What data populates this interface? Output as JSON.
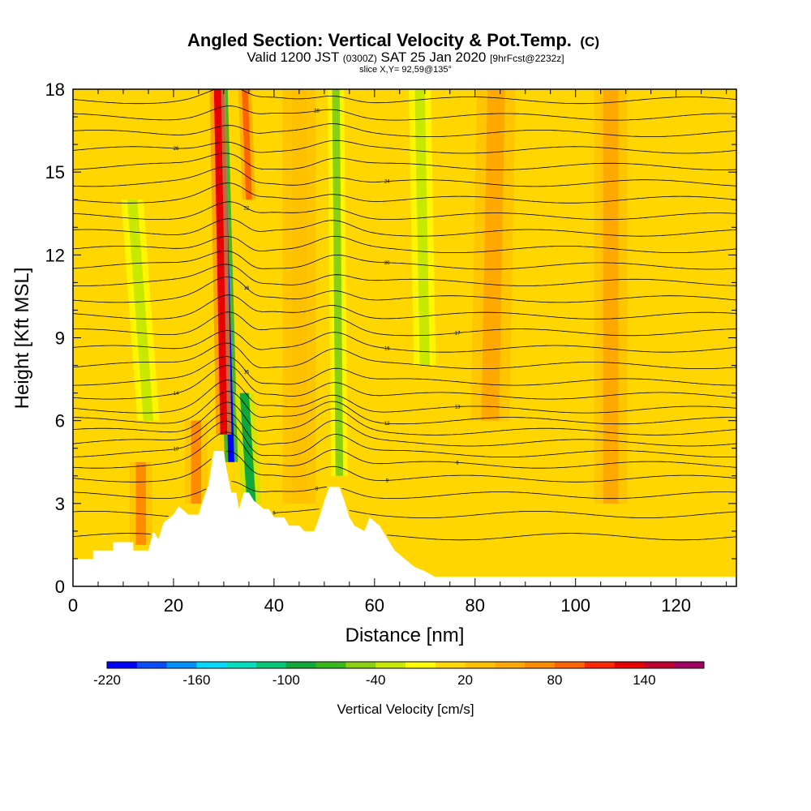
{
  "chart_data": {
    "type": "heatmap",
    "title": "Angled Section: Vertical Velocity & Pot.Temp.",
    "title_unit": "(C)",
    "subtitle": {
      "part1": "Valid 1200 JST ",
      "part2": "(0300Z)",
      "part3": " SAT 25 Jan 2020 ",
      "part4": "[9hrFcst@2232z]"
    },
    "slice_label": "slice X,Y= 92,59@135°",
    "xlabel": "Distance [nm]",
    "ylabel": "Height [Kft MSL]",
    "xlim": [
      0,
      132
    ],
    "ylim": [
      0,
      18
    ],
    "x_ticks": [
      "0",
      "20",
      "40",
      "60",
      "80",
      "100",
      "120"
    ],
    "y_ticks": [
      "0",
      "3",
      "6",
      "9",
      "12",
      "15",
      "18"
    ],
    "x_tick_values": [
      0,
      20,
      40,
      60,
      80,
      100,
      120
    ],
    "y_tick_values": [
      0,
      3,
      6,
      9,
      12,
      15,
      18
    ],
    "colorbar": {
      "title": "Vertical Velocity [cm/s]",
      "labels": [
        "-220",
        "-160",
        "-100",
        "-40",
        "20",
        "80",
        "140"
      ],
      "label_values": [
        -220,
        -160,
        -100,
        -40,
        20,
        80,
        140
      ],
      "min": -220,
      "max": 180,
      "step": 20,
      "colors": [
        "#0000ff",
        "#0a4dff",
        "#0090ff",
        "#00d8ff",
        "#00e0c0",
        "#00c878",
        "#10a838",
        "#38b818",
        "#88d010",
        "#c8e800",
        "#ffff00",
        "#ffd800",
        "#ffc000",
        "#ffa800",
        "#ff8c00",
        "#ff6400",
        "#ff2800",
        "#e80000",
        "#c00030",
        "#a00060"
      ]
    },
    "terrain_profile": [
      [
        0,
        1.0
      ],
      [
        4,
        1.0
      ],
      [
        4,
        1.3
      ],
      [
        8,
        1.3
      ],
      [
        8,
        1.6
      ],
      [
        12,
        1.6
      ],
      [
        12,
        1.3
      ],
      [
        15,
        1.3
      ],
      [
        16,
        2.0
      ],
      [
        17,
        1.7
      ],
      [
        18,
        2.3
      ],
      [
        20,
        2.6
      ],
      [
        21,
        2.9
      ],
      [
        23,
        2.6
      ],
      [
        25,
        2.6
      ],
      [
        26,
        3.2
      ],
      [
        27,
        3.7
      ],
      [
        28,
        4.9
      ],
      [
        30,
        4.9
      ],
      [
        30.5,
        4.3
      ],
      [
        31.5,
        3.4
      ],
      [
        32.5,
        3.4
      ],
      [
        33,
        2.8
      ],
      [
        34,
        3.4
      ],
      [
        35,
        3.4
      ],
      [
        36,
        3.1
      ],
      [
        38,
        2.8
      ],
      [
        39,
        2.8
      ],
      [
        40,
        2.5
      ],
      [
        42,
        2.5
      ],
      [
        43,
        2.2
      ],
      [
        45,
        2.2
      ],
      [
        46,
        2.0
      ],
      [
        48,
        2.0
      ],
      [
        49,
        2.5
      ],
      [
        50,
        3.1
      ],
      [
        51,
        3.6
      ],
      [
        53,
        3.6
      ],
      [
        54,
        3.1
      ],
      [
        55,
        2.5
      ],
      [
        56,
        2.2
      ],
      [
        58,
        2.0
      ],
      [
        59,
        2.5
      ],
      [
        61,
        2.2
      ],
      [
        62,
        1.9
      ],
      [
        63,
        1.6
      ],
      [
        64,
        1.3
      ],
      [
        66,
        1.0
      ],
      [
        68,
        0.7
      ],
      [
        70,
        0.55
      ],
      [
        72,
        0.35
      ],
      [
        132,
        0.35
      ]
    ],
    "vertical_velocity_features": [
      {
        "x": 31.5,
        "z_bottom": 4.5,
        "z_top": 18,
        "slope_nm_per_kft": -0.15,
        "width_nm": 1.2,
        "value": -220
      },
      {
        "x": 35.5,
        "z_bottom": 3.0,
        "z_top": 7,
        "slope_nm_per_kft": -0.35,
        "width_nm": 1.8,
        "value": -100
      },
      {
        "x": 30.0,
        "z_bottom": 5.5,
        "z_top": 18,
        "slope_nm_per_kft": -0.1,
        "width_nm": 1.4,
        "value": 120
      },
      {
        "x": 35.0,
        "z_bottom": 14,
        "z_top": 18,
        "slope_nm_per_kft": -0.2,
        "width_nm": 1.2,
        "value": 80
      },
      {
        "x": 53.0,
        "z_bottom": 4.0,
        "z_top": 18,
        "slope_nm_per_kft": -0.05,
        "width_nm": 1.5,
        "value": -50
      },
      {
        "x": 15.0,
        "z_bottom": 6.0,
        "z_top": 14,
        "slope_nm_per_kft": -0.4,
        "width_nm": 2.0,
        "value": -40
      },
      {
        "x": 70.0,
        "z_bottom": 8.0,
        "z_top": 18,
        "slope_nm_per_kft": -0.1,
        "width_nm": 2.0,
        "value": -40
      },
      {
        "x": 24.5,
        "z_bottom": 3.0,
        "z_top": 6,
        "slope_nm_per_kft": 0.0,
        "width_nm": 2.0,
        "value": 60
      },
      {
        "x": 13.5,
        "z_bottom": 1.5,
        "z_top": 4.5,
        "slope_nm_per_kft": 0.0,
        "width_nm": 2.0,
        "value": 60
      },
      {
        "x": 83.0,
        "z_bottom": 6.0,
        "z_top": 18,
        "slope_nm_per_kft": 0.1,
        "width_nm": 3.5,
        "value": 40
      },
      {
        "x": 107.0,
        "z_bottom": 3.0,
        "z_top": 18,
        "slope_nm_per_kft": 0.0,
        "width_nm": 3.0,
        "value": 40
      },
      {
        "x": 45.0,
        "z_bottom": 3.0,
        "z_top": 18,
        "slope_nm_per_kft": 0.0,
        "width_nm": 3.0,
        "value": 30
      }
    ],
    "theta_contours": [
      {
        "z0": 1.8,
        "amp": 0.0,
        "label": ""
      },
      {
        "z0": 2.6,
        "amp": 0.2,
        "label": "6"
      },
      {
        "z0": 3.3,
        "amp": 0.5,
        "label": "8"
      },
      {
        "z0": 3.9,
        "amp": 0.9,
        "label": "9"
      },
      {
        "z0": 4.4,
        "amp": 1.1,
        "label": "6"
      },
      {
        "z0": 4.8,
        "amp": 1.2,
        "label": "10"
      },
      {
        "z0": 5.2,
        "amp": 1.2,
        "label": ""
      },
      {
        "z0": 5.6,
        "amp": 1.2,
        "label": ""
      },
      {
        "z0": 6.0,
        "amp": 1.1,
        "label": "12"
      },
      {
        "z0": 6.4,
        "amp": 1.0,
        "label": "13"
      },
      {
        "z0": 6.9,
        "amp": 1.0,
        "label": "14"
      },
      {
        "z0": 7.4,
        "amp": 0.9,
        "label": "15"
      },
      {
        "z0": 8.0,
        "amp": 0.9,
        "label": ""
      },
      {
        "z0": 8.6,
        "amp": 0.8,
        "label": "16"
      },
      {
        "z0": 9.2,
        "amp": 0.8,
        "label": "17"
      },
      {
        "z0": 9.8,
        "amp": 0.7,
        "label": ""
      },
      {
        "z0": 10.4,
        "amp": 0.7,
        "label": "18"
      },
      {
        "z0": 11.0,
        "amp": 0.6,
        "label": ""
      },
      {
        "z0": 11.6,
        "amp": 0.6,
        "label": "20"
      },
      {
        "z0": 12.2,
        "amp": 0.6,
        "label": ""
      },
      {
        "z0": 12.8,
        "amp": 0.6,
        "label": ""
      },
      {
        "z0": 13.4,
        "amp": 0.5,
        "label": "22"
      },
      {
        "z0": 14.0,
        "amp": 0.5,
        "label": ""
      },
      {
        "z0": 14.6,
        "amp": 0.5,
        "label": "24"
      },
      {
        "z0": 15.2,
        "amp": 0.5,
        "label": ""
      },
      {
        "z0": 15.8,
        "amp": 0.4,
        "label": "26"
      },
      {
        "z0": 16.4,
        "amp": 0.4,
        "label": ""
      },
      {
        "z0": 17.0,
        "amp": 0.4,
        "label": "28"
      },
      {
        "z0": 17.6,
        "amp": 0.4,
        "label": ""
      }
    ]
  }
}
